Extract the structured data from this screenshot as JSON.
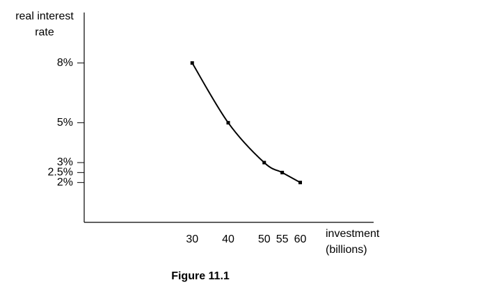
{
  "chart_data": {
    "type": "line",
    "title": "Figure 11.1",
    "y_label": [
      "real interest",
      "rate"
    ],
    "x_label": [
      "investment",
      "(billions)"
    ],
    "x": [
      30,
      40,
      50,
      55,
      60
    ],
    "series": [
      {
        "color": "#000000",
        "values": [
          8,
          5,
          3,
          2.5,
          2
        ]
      }
    ],
    "xlim": [
      0,
      80
    ],
    "xticks": [
      30,
      40,
      50,
      55,
      60
    ],
    "ylim": [
      0,
      10.5
    ],
    "yticks": [
      {
        "value": 2,
        "label": "2%"
      },
      {
        "value": 2.5,
        "label": "2.5%"
      },
      {
        "value": 3,
        "label": "3%"
      },
      {
        "value": 5,
        "label": "5%"
      },
      {
        "value": 8,
        "label": "8%"
      }
    ]
  }
}
